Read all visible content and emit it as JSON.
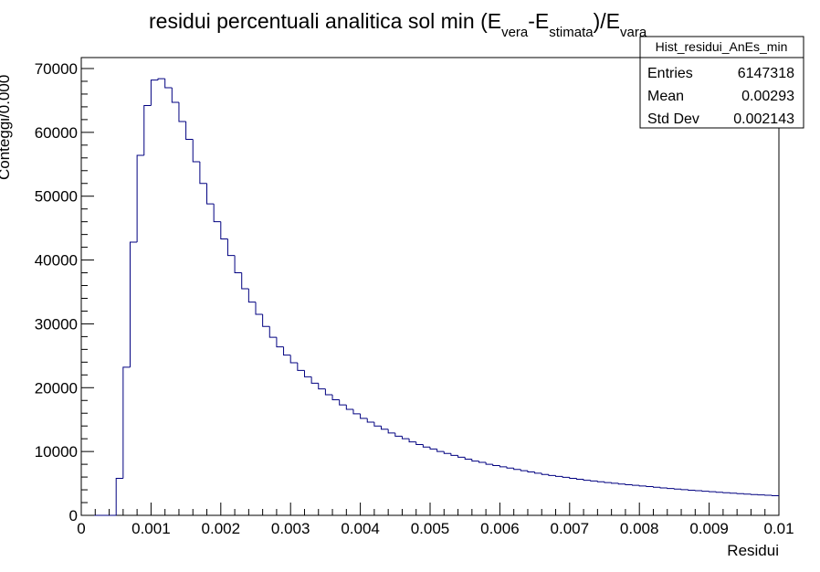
{
  "chart_data": {
    "type": "histogram",
    "title": {
      "prefix": "residui percentuali analitica sol min (E",
      "sub1": "vera",
      "mid1": "-E",
      "sub2": "stimata",
      "mid2": ")/E",
      "sub3": "vara"
    },
    "xlabel": "Residui",
    "ylabel": "Conteggi/0.000",
    "xlim": [
      0,
      0.01
    ],
    "ylim": [
      0,
      70000
    ],
    "x_ticks": [
      "0",
      "0.001",
      "0.002",
      "0.003",
      "0.004",
      "0.005",
      "0.006",
      "0.007",
      "0.008",
      "0.009",
      "0.01"
    ],
    "y_ticks": [
      "0",
      "10000",
      "20000",
      "30000",
      "40000",
      "50000",
      "60000",
      "70000"
    ],
    "bin_width": 0.0001,
    "values": [
      0,
      0,
      0,
      0,
      0,
      5800,
      23200,
      42800,
      56400,
      64200,
      68200,
      68400,
      67000,
      64700,
      61700,
      58900,
      55400,
      52000,
      48800,
      46000,
      43300,
      40700,
      38000,
      35500,
      33400,
      31500,
      29600,
      27900,
      26400,
      25100,
      23900,
      22700,
      21700,
      20700,
      19800,
      18900,
      18100,
      17300,
      16600,
      15900,
      15200,
      14600,
      14000,
      13500,
      12900,
      12400,
      12000,
      11500,
      11100,
      10700,
      10400,
      10000,
      9700,
      9400,
      9100,
      8800,
      8500,
      8300,
      8000,
      7800,
      7600,
      7400,
      7200,
      7000,
      6800,
      6600,
      6400,
      6250,
      6100,
      5950,
      5800,
      5650,
      5500,
      5380,
      5260,
      5140,
      5020,
      4900,
      4800,
      4700,
      4600,
      4500,
      4400,
      4300,
      4210,
      4120,
      4030,
      3940,
      3860,
      3780,
      3700,
      3620,
      3540,
      3470,
      3400,
      3330,
      3260,
      3200,
      3140,
      3080
    ],
    "stats": {
      "name": "Hist_residui_AnEs_min",
      "rows": [
        {
          "label": "Entries",
          "value": "6147318"
        },
        {
          "label": "Mean",
          "value": "0.00293"
        },
        {
          "label": "Std Dev",
          "value": "0.002143"
        }
      ]
    },
    "line_color": "#000080",
    "grid": false
  }
}
